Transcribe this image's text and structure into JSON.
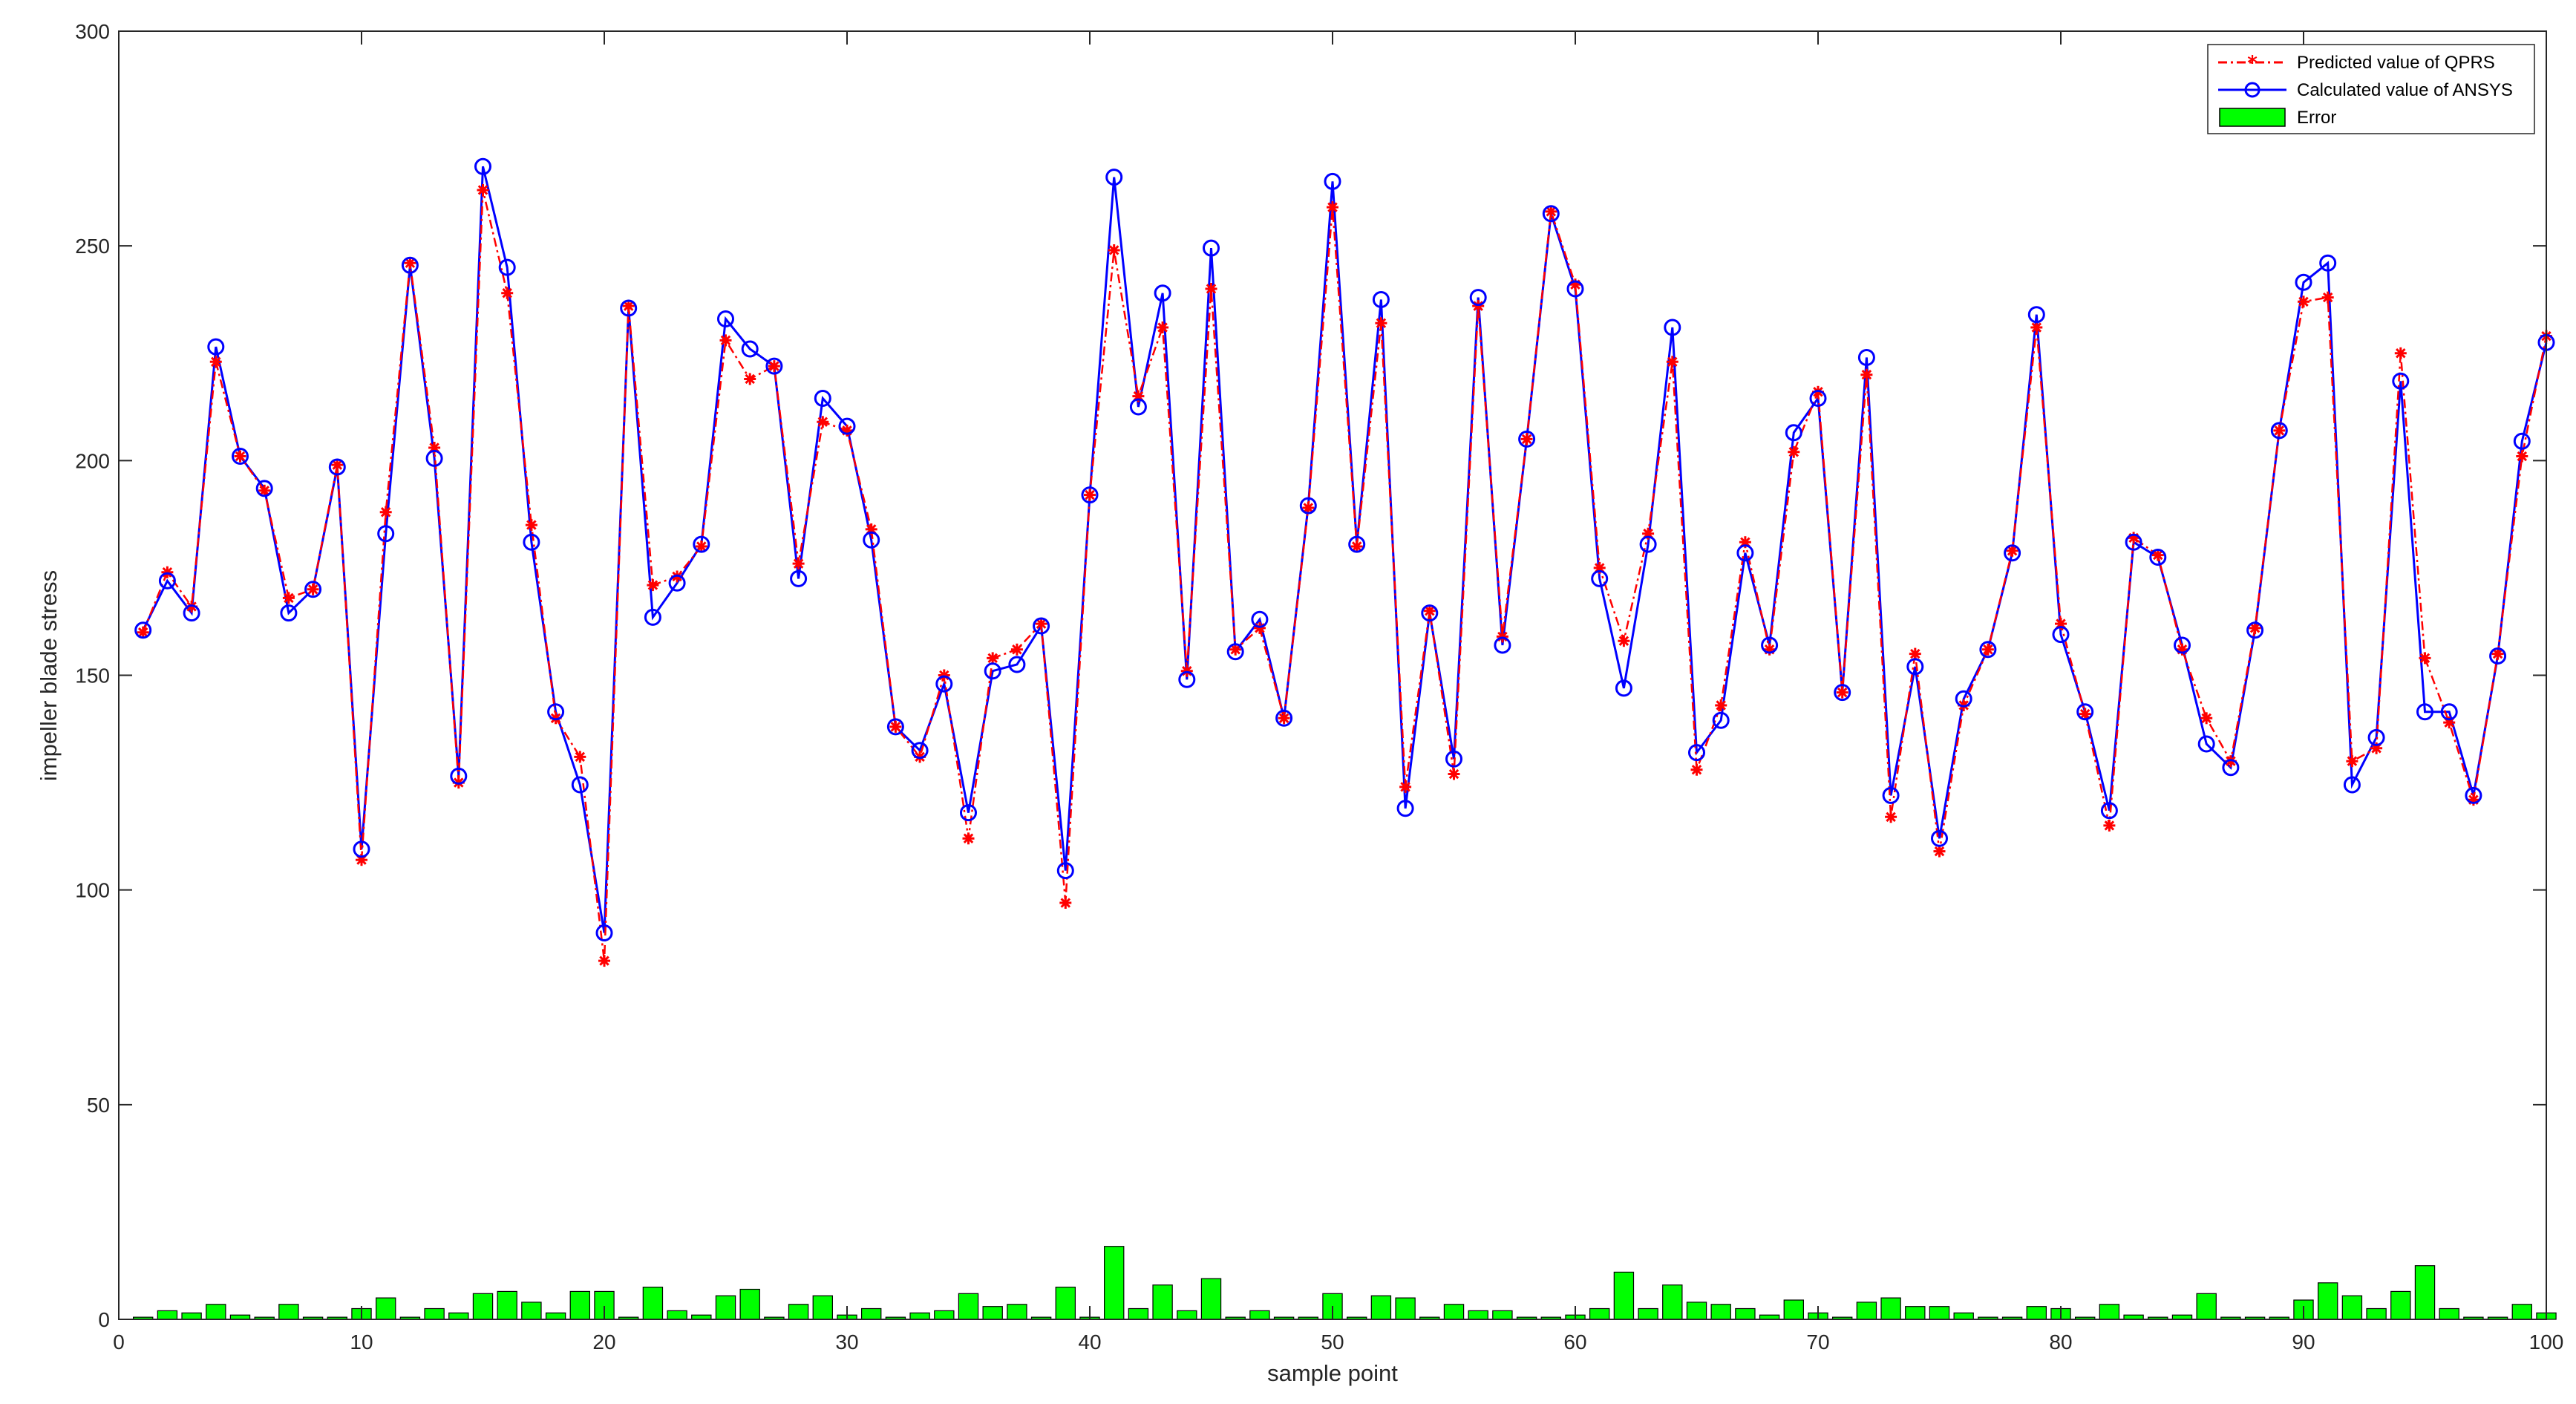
{
  "chart_data": {
    "type": "line",
    "title": "",
    "xlabel": "sample point",
    "ylabel": "impeller blade stress",
    "xlim": [
      0,
      100
    ],
    "ylim": [
      0,
      300
    ],
    "xticks": [
      0,
      10,
      20,
      30,
      40,
      50,
      60,
      70,
      80,
      90,
      100
    ],
    "yticks": [
      0,
      50,
      100,
      150,
      200,
      250,
      300
    ],
    "legend_position": "top-right",
    "grid": false,
    "x": [
      1,
      2,
      3,
      4,
      5,
      6,
      7,
      8,
      9,
      10,
      11,
      12,
      13,
      14,
      15,
      16,
      17,
      18,
      19,
      20,
      21,
      22,
      23,
      24,
      25,
      26,
      27,
      28,
      29,
      30,
      31,
      32,
      33,
      34,
      35,
      36,
      37,
      38,
      39,
      40,
      41,
      42,
      43,
      44,
      45,
      46,
      47,
      48,
      49,
      50,
      51,
      52,
      53,
      54,
      55,
      56,
      57,
      58,
      59,
      60,
      61,
      62,
      63,
      64,
      65,
      66,
      67,
      68,
      69,
      70,
      71,
      72,
      73,
      74,
      75,
      76,
      77,
      78,
      79,
      80,
      81,
      82,
      83,
      84,
      85,
      86,
      87,
      88,
      89,
      90,
      91,
      92,
      93,
      94,
      95,
      96,
      97,
      98,
      99,
      100
    ],
    "series": [
      {
        "name": "Predicted value of QPRS",
        "kind": "line",
        "color": "#ff0000",
        "line_style": "dash-dot",
        "marker": "star",
        "values": [
          160,
          174,
          166,
          223,
          201,
          193,
          168,
          170,
          199,
          107,
          188,
          246,
          203,
          125,
          263,
          239,
          185,
          140,
          131,
          83.5,
          236,
          171,
          173,
          180,
          228,
          219,
          222,
          176,
          209,
          207,
          184,
          138,
          131,
          150,
          112,
          154,
          156,
          162,
          97,
          192,
          249,
          215,
          231,
          151,
          240,
          156,
          161,
          140,
          189,
          259,
          180,
          232,
          124,
          165,
          127,
          236,
          159,
          205,
          258,
          241,
          175,
          158,
          183,
          223,
          128,
          143,
          181,
          156,
          202,
          216,
          146,
          220,
          117,
          155,
          109,
          143,
          156,
          179,
          231,
          162,
          141,
          115,
          182,
          178,
          156,
          140,
          130,
          161,
          207,
          237,
          238,
          130,
          133,
          225,
          154,
          139,
          121,
          155,
          201,
          229
        ]
      },
      {
        "name": "Calculated value of ANSYS",
        "kind": "line",
        "color": "#0000ff",
        "line_style": "solid",
        "marker": "circle",
        "values": [
          160.5,
          172,
          164.5,
          226.5,
          201,
          193.5,
          164.5,
          170,
          198.5,
          109.5,
          183,
          245.5,
          200.5,
          126.5,
          268.5,
          245,
          181,
          141.5,
          124.5,
          90,
          235.5,
          163.5,
          171.5,
          180.5,
          233,
          226,
          222,
          172.5,
          214.5,
          208,
          181.5,
          138,
          132.5,
          148,
          118,
          151,
          152.5,
          161.5,
          104.5,
          192,
          266,
          212.5,
          239,
          149,
          249.5,
          155.5,
          163,
          140,
          189.5,
          265,
          180.5,
          237.5,
          119,
          164.5,
          130.5,
          238,
          157,
          205,
          257.5,
          240,
          172.5,
          147,
          180.5,
          231,
          132,
          139.5,
          178.5,
          157,
          206.5,
          214.5,
          146,
          224,
          122,
          152,
          112,
          144.5,
          156,
          178.5,
          234,
          159.5,
          141.5,
          118.5,
          181,
          177.5,
          157,
          134,
          128.5,
          160.5,
          207,
          241.5,
          246,
          124.5,
          135.5,
          218.5,
          141.5,
          141.5,
          122,
          154.5,
          204.5,
          227.5
        ]
      },
      {
        "name": "Error",
        "kind": "bar",
        "color": "#00ff00",
        "values": [
          0.5,
          2,
          1.5,
          3.5,
          1,
          0.5,
          3.5,
          0.5,
          0.5,
          2.5,
          5,
          0.5,
          2.5,
          1.5,
          6,
          6.5,
          4,
          1.5,
          6.5,
          6.5,
          0.5,
          7.5,
          2,
          1,
          5.5,
          7,
          0.5,
          3.5,
          5.5,
          1,
          2.5,
          0.5,
          1.5,
          2,
          6,
          3,
          3.5,
          0.5,
          7.5,
          0.5,
          17,
          2.5,
          8,
          2,
          9.5,
          0.5,
          2,
          0.5,
          0.5,
          6,
          0.5,
          5.5,
          5,
          0.5,
          3.5,
          2,
          2,
          0.5,
          0.5,
          1,
          2.5,
          11,
          2.5,
          8,
          4,
          3.5,
          2.5,
          1,
          4.5,
          1.5,
          0.5,
          4,
          5,
          3,
          3,
          1.5,
          0.5,
          0.5,
          3,
          2.5,
          0.5,
          3.5,
          1,
          0.5,
          1,
          6,
          0.5,
          0.5,
          0.5,
          4.5,
          8.5,
          5.5,
          2.5,
          6.5,
          12.5,
          2.5,
          0.5,
          0.5,
          3.5,
          1.5
        ]
      }
    ]
  }
}
